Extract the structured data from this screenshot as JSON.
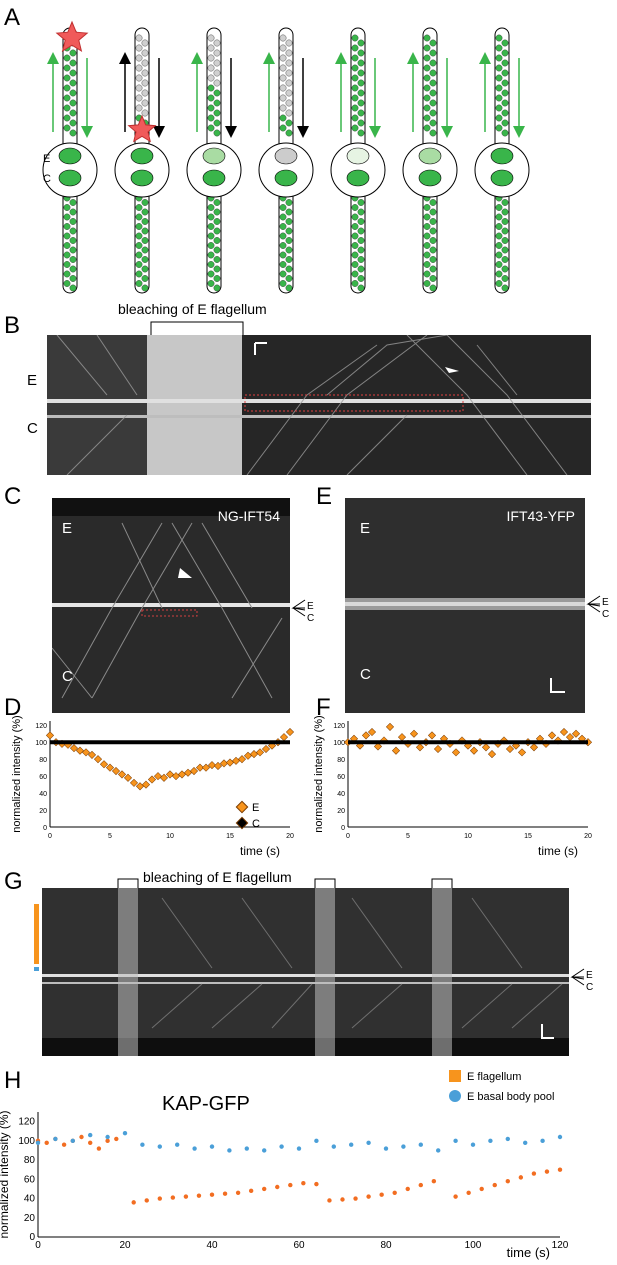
{
  "panels": {
    "a": {
      "letter": "A",
      "markers": [
        "E",
        "C"
      ]
    },
    "b": {
      "letter": "B",
      "title": "bleaching of E flagellum",
      "labels": [
        "E",
        "C"
      ]
    },
    "c": {
      "letter": "C",
      "title": "NG-IFT54",
      "labels": [
        "E",
        "C"
      ],
      "edge": [
        "E",
        "C"
      ]
    },
    "e": {
      "letter": "E",
      "title": "IFT43-YFP",
      "labels": [
        "E",
        "C"
      ],
      "edge": [
        "E",
        "C"
      ]
    },
    "d": {
      "letter": "D"
    },
    "f": {
      "letter": "F"
    },
    "g": {
      "letter": "G",
      "title": "bleaching of E flagellum",
      "edge": [
        "E",
        "C"
      ]
    },
    "h": {
      "letter": "H",
      "title": "KAP-GFP"
    }
  },
  "colors": {
    "green": "#39b54a",
    "light_green": "#a9dca3",
    "orange": "#f7941d",
    "orange_h": "#f26d21",
    "blue": "#4a9fd8",
    "red_star": "#f05a5a"
  },
  "chart_data": [
    {
      "id": "D",
      "type": "scatter",
      "xlabel": "time (s)",
      "ylabel": "normalized intensity (%)",
      "xlim": [
        0,
        20
      ],
      "ylim": [
        0,
        125
      ],
      "xticks": [
        "0",
        "5",
        "10",
        "15",
        "20"
      ],
      "yticks": [
        "0",
        "20",
        "40",
        "60",
        "80",
        "100",
        "120"
      ],
      "legend": [
        "E",
        "C"
      ],
      "legend_position": "right",
      "series": [
        {
          "name": "E",
          "color": "#f7941d",
          "x": [
            0,
            0.5,
            1,
            1.5,
            2,
            2.5,
            3,
            3.5,
            4,
            4.5,
            5,
            5.5,
            6,
            6.5,
            7,
            7.5,
            8,
            8.5,
            9,
            9.5,
            10,
            10.5,
            11,
            11.5,
            12,
            12.5,
            13,
            13.5,
            14,
            14.5,
            15,
            15.5,
            16,
            16.5,
            17,
            17.5,
            18,
            18.5,
            19,
            19.5,
            20
          ],
          "y": [
            108,
            100,
            98,
            97,
            93,
            90,
            88,
            85,
            80,
            74,
            70,
            66,
            62,
            58,
            52,
            48,
            50,
            56,
            60,
            58,
            62,
            60,
            62,
            64,
            66,
            70,
            70,
            73,
            72,
            75,
            76,
            78,
            80,
            84,
            86,
            88,
            92,
            96,
            100,
            106,
            112
          ]
        },
        {
          "name": "C",
          "color": "#000000",
          "x": [
            0,
            20
          ],
          "y": [
            100,
            100
          ]
        }
      ]
    },
    {
      "id": "F",
      "type": "scatter",
      "xlabel": "time (s)",
      "ylabel": "normalized intensity (%)",
      "xlim": [
        0,
        20
      ],
      "ylim": [
        0,
        125
      ],
      "xticks": [
        "0",
        "5",
        "10",
        "15",
        "20"
      ],
      "yticks": [
        "0",
        "20",
        "40",
        "60",
        "80",
        "100",
        "120"
      ],
      "series": [
        {
          "name": "E",
          "color": "#f7941d",
          "x": [
            0,
            0.5,
            1,
            1.5,
            2,
            2.5,
            3,
            3.5,
            4,
            4.5,
            5,
            5.5,
            6,
            6.5,
            7,
            7.5,
            8,
            8.5,
            9,
            9.5,
            10,
            10.5,
            11,
            11.5,
            12,
            12.5,
            13,
            13.5,
            14,
            14.5,
            15,
            15.5,
            16,
            16.5,
            17,
            17.5,
            18,
            18.5,
            19,
            19.5,
            20
          ],
          "y": [
            100,
            104,
            96,
            108,
            112,
            95,
            102,
            118,
            90,
            106,
            98,
            110,
            94,
            100,
            108,
            92,
            104,
            98,
            88,
            102,
            96,
            90,
            100,
            94,
            86,
            98,
            102,
            92,
            96,
            88,
            100,
            94,
            104,
            98,
            108,
            102,
            112,
            106,
            110,
            104,
            100
          ]
        },
        {
          "name": "C",
          "color": "#000000",
          "x": [
            0,
            20
          ],
          "y": [
            100,
            100
          ]
        }
      ]
    },
    {
      "id": "H",
      "type": "scatter",
      "xlabel": "time (s)",
      "ylabel": "normalized intensity (%)",
      "xlim": [
        0,
        120
      ],
      "ylim": [
        0,
        130
      ],
      "xticks": [
        "0",
        "20",
        "40",
        "60",
        "80",
        "100",
        "120"
      ],
      "yticks": [
        "0",
        "20",
        "40",
        "60",
        "80",
        "100",
        "120"
      ],
      "legend": [
        "E flagellum",
        "E basal body pool"
      ],
      "legend_position": "top-right",
      "series": [
        {
          "name": "E flagellum",
          "color": "#f26d21",
          "x": [
            0,
            2,
            4,
            6,
            8,
            10,
            12,
            14,
            16,
            18,
            22,
            25,
            28,
            31,
            34,
            37,
            40,
            43,
            46,
            49,
            52,
            55,
            58,
            61,
            64,
            67,
            70,
            73,
            76,
            79,
            82,
            85,
            88,
            91,
            96,
            99,
            102,
            105,
            108,
            111,
            114,
            117,
            120
          ],
          "y": [
            100,
            98,
            102,
            96,
            100,
            104,
            98,
            92,
            100,
            102,
            36,
            38,
            40,
            41,
            42,
            43,
            44,
            45,
            46,
            48,
            50,
            52,
            54,
            56,
            55,
            38,
            39,
            40,
            42,
            44,
            46,
            50,
            54,
            58,
            42,
            46,
            50,
            54,
            58,
            62,
            66,
            68,
            70
          ]
        },
        {
          "name": "E basal body pool",
          "color": "#4a9fd8",
          "x": [
            0,
            4,
            8,
            12,
            16,
            20,
            24,
            28,
            32,
            36,
            40,
            44,
            48,
            52,
            56,
            60,
            64,
            68,
            72,
            76,
            80,
            84,
            88,
            92,
            96,
            100,
            104,
            108,
            112,
            116,
            120
          ],
          "y": [
            98,
            102,
            100,
            106,
            104,
            108,
            96,
            94,
            96,
            92,
            94,
            90,
            92,
            90,
            94,
            92,
            100,
            94,
            96,
            98,
            92,
            94,
            96,
            90,
            100,
            96,
            100,
            102,
            98,
            100,
            104
          ]
        }
      ]
    }
  ]
}
